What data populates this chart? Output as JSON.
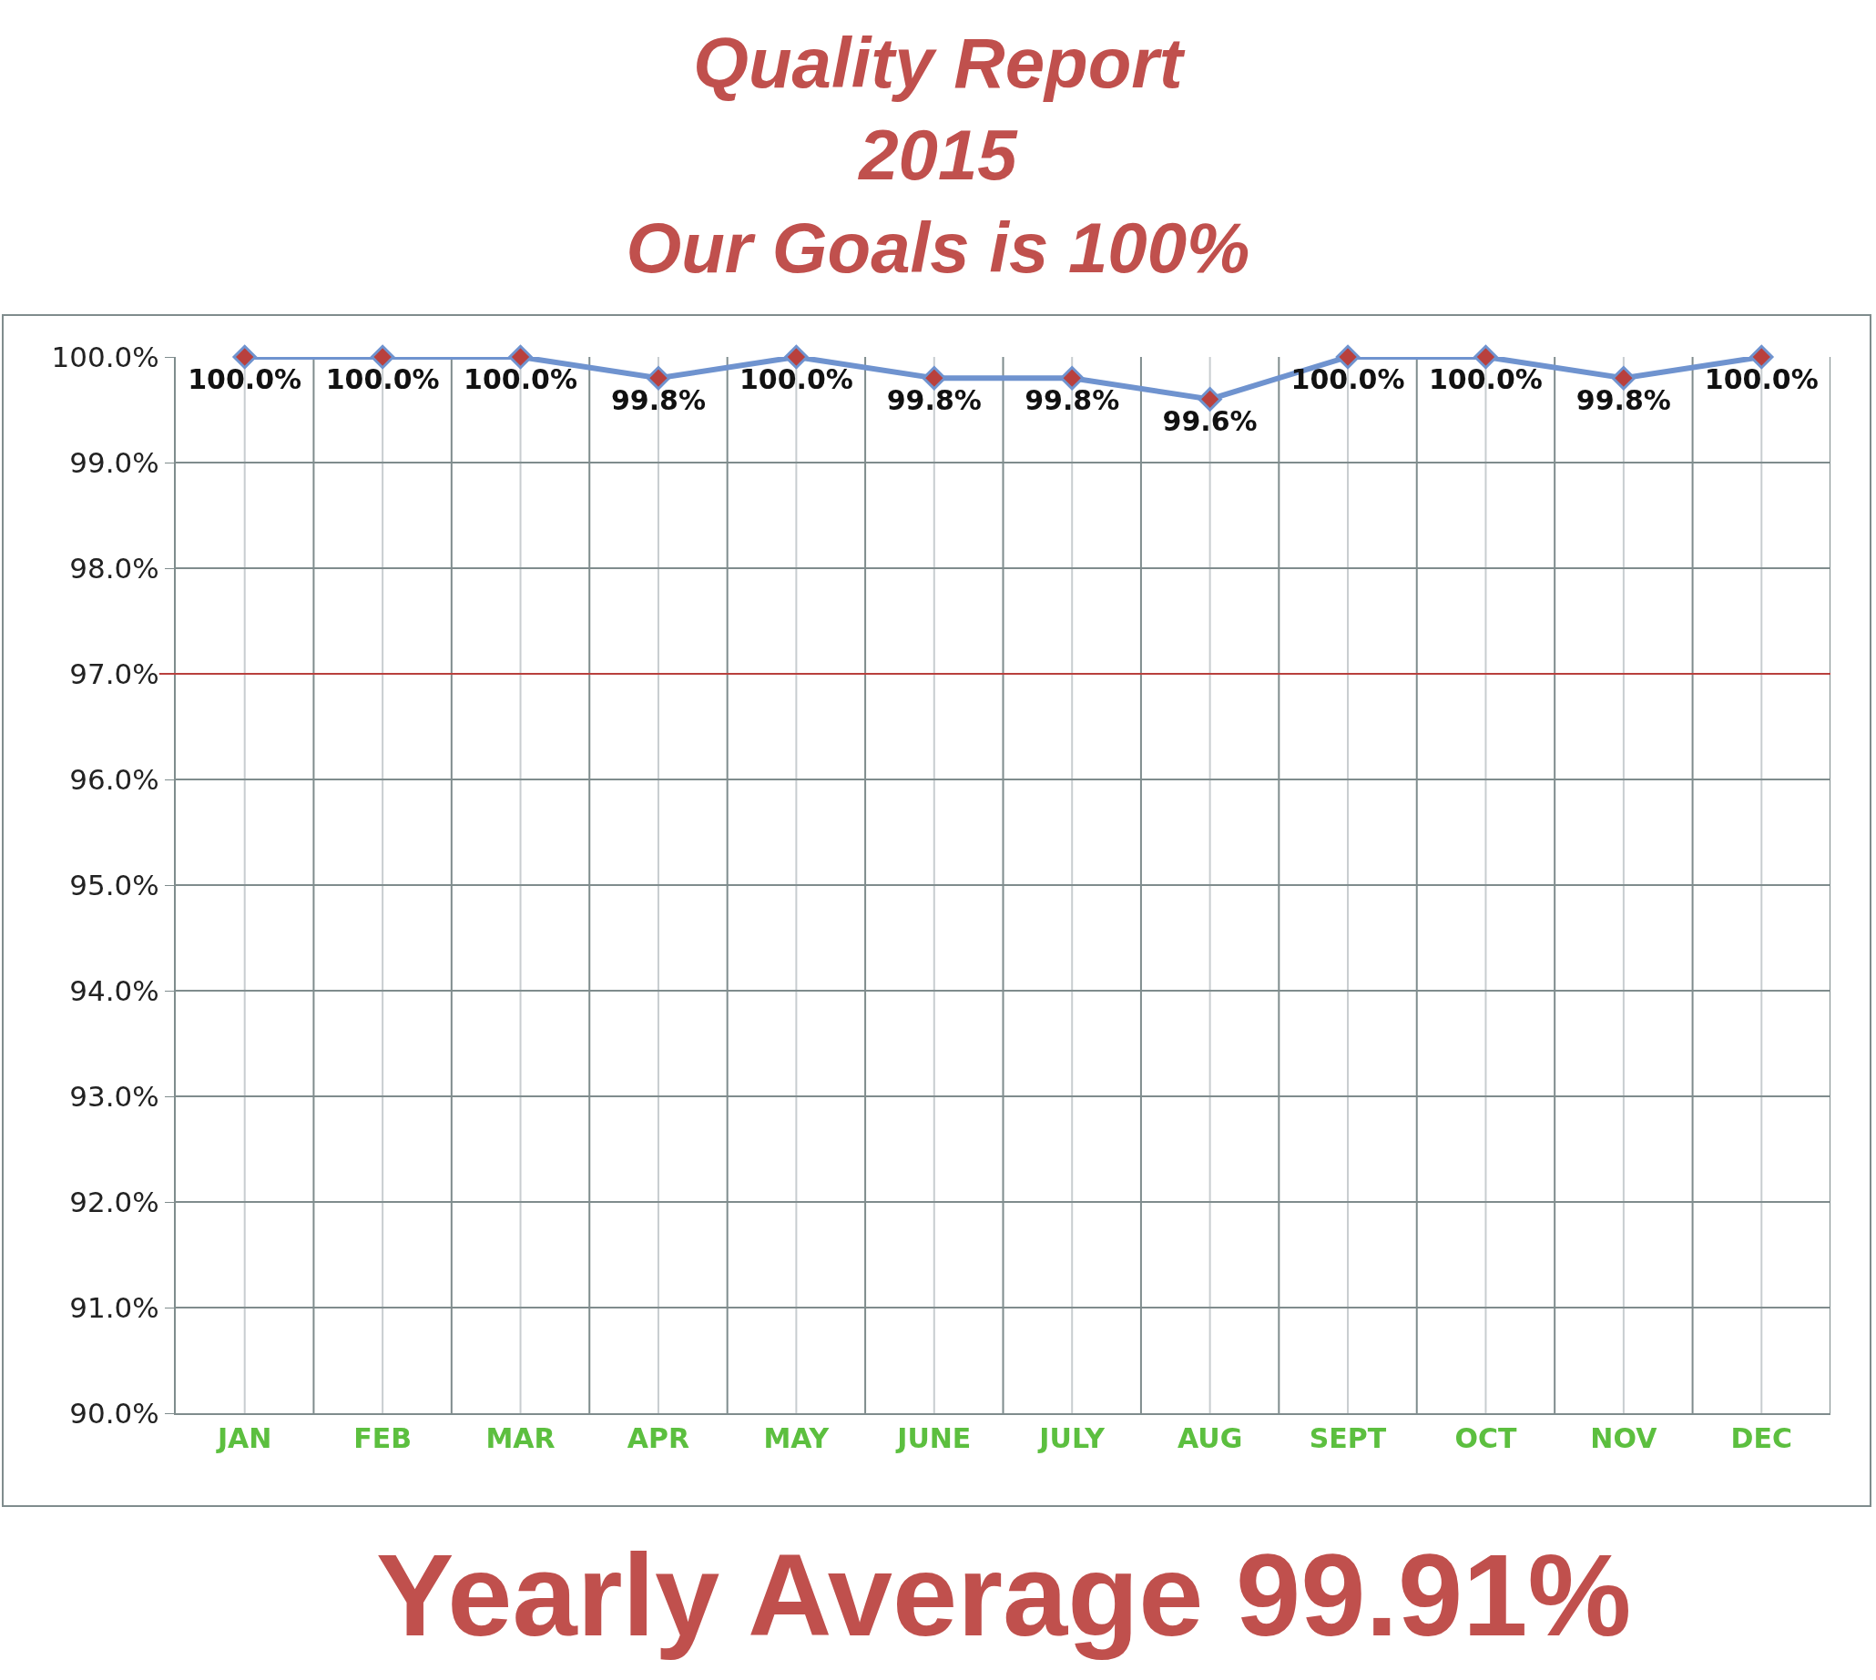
{
  "chart_data": {
    "type": "line",
    "title": "Quality Report\n2015\nOur Goals is 100%",
    "categories": [
      "JAN",
      "FEB",
      "MAR",
      "APR",
      "MAY",
      "JUNE",
      "JULY",
      "AUG",
      "SEPT",
      "OCT",
      "NOV",
      "DEC"
    ],
    "series": [
      {
        "color": "#6f93cf",
        "values": [
          100,
          100,
          100,
          99.8,
          100,
          99.8,
          99.8,
          99.6,
          100,
          100,
          99.8,
          100
        ],
        "value_labels": [
          "100.0%",
          "100.0%",
          "100.0%",
          "99.8%",
          "100.0%",
          "99.8%",
          "99.8%",
          "99.6%",
          "100.0%",
          "100.0%",
          "99.8%",
          "100.0%"
        ]
      }
    ],
    "ylim": [
      90,
      100
    ],
    "yticks": [
      {
        "value": 90,
        "label": "90.0%"
      },
      {
        "value": 91,
        "label": "91.0%"
      },
      {
        "value": 92,
        "label": "92.0%"
      },
      {
        "value": 93,
        "label": "93.0%"
      },
      {
        "value": 94,
        "label": "94.0%"
      },
      {
        "value": 95,
        "label": "95.0%"
      },
      {
        "value": 96,
        "label": "96.0%"
      },
      {
        "value": 97,
        "label": "97.0%"
      },
      {
        "value": 98,
        "label": "98.0%"
      },
      {
        "value": 99,
        "label": "99.0%"
      },
      {
        "value": 100,
        "label": "100.0%"
      }
    ],
    "ref_lines": [
      {
        "axis": "y",
        "value": 97,
        "color": "#b9403d"
      }
    ],
    "annotations": [
      "Yearly Average 99.91%"
    ],
    "grid": true,
    "marker": "diamond",
    "line_style": "solid"
  }
}
